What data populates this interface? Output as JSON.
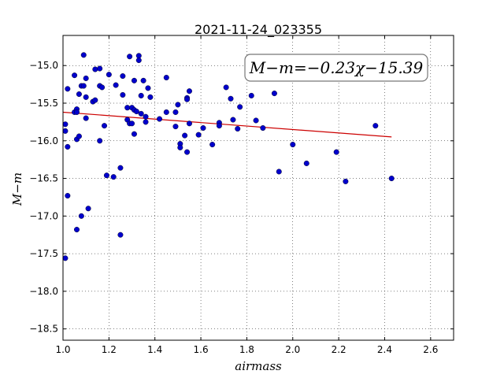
{
  "chart_data": {
    "type": "scatter",
    "title": "2021-11-24_023355",
    "xlabel": "airmass",
    "ylabel": "M−m",
    "xlim": [
      1.0,
      2.7
    ],
    "ylim": [
      -18.65,
      -14.6
    ],
    "x_ticks": [
      1.0,
      1.2,
      1.4,
      1.6,
      1.8,
      2.0,
      2.2,
      2.4,
      2.6
    ],
    "x_tick_labels": [
      "1.0",
      "1.2",
      "1.4",
      "1.6",
      "1.8",
      "2.0",
      "2.2",
      "2.4",
      "2.6"
    ],
    "y_ticks": [
      -15.0,
      -15.5,
      -16.0,
      -16.5,
      -17.0,
      -17.5,
      -18.0,
      -18.5
    ],
    "y_tick_labels": [
      "−15.0",
      "−15.5",
      "−16.0",
      "−16.5",
      "−17.0",
      "−17.5",
      "−18.0",
      "−18.5"
    ],
    "grid": true,
    "annotation": "M−m=−0.23χ−15.39",
    "annotation_position": "top-right",
    "colors": {
      "points": "#0000cc",
      "fit_line": "#cc0000"
    },
    "fit": {
      "slope": -0.23,
      "intercept": -15.39,
      "x_range": [
        1.0,
        2.43
      ]
    },
    "points": {
      "x": [
        1.01,
        1.01,
        1.02,
        1.02,
        1.02,
        1.01,
        1.05,
        1.05,
        1.06,
        1.06,
        1.06,
        1.06,
        1.07,
        1.07,
        1.08,
        1.08,
        1.09,
        1.09,
        1.1,
        1.1,
        1.1,
        1.11,
        1.13,
        1.14,
        1.14,
        1.16,
        1.16,
        1.16,
        1.17,
        1.18,
        1.19,
        1.2,
        1.22,
        1.23,
        1.25,
        1.25,
        1.26,
        1.26,
        1.28,
        1.28,
        1.29,
        1.29,
        1.3,
        1.3,
        1.31,
        1.31,
        1.31,
        1.32,
        1.33,
        1.33,
        1.34,
        1.34,
        1.35,
        1.36,
        1.36,
        1.37,
        1.38,
        1.42,
        1.45,
        1.45,
        1.49,
        1.49,
        1.5,
        1.51,
        1.51,
        1.53,
        1.54,
        1.54,
        1.54,
        1.55,
        1.55,
        1.59,
        1.61,
        1.65,
        1.68,
        1.68,
        1.71,
        1.73,
        1.74,
        1.76,
        1.77,
        1.82,
        1.84,
        1.87,
        1.92,
        1.94,
        2.0,
        2.06,
        2.19,
        2.23,
        2.36,
        2.43
      ],
      "y": [
        -15.78,
        -15.87,
        -16.08,
        -15.31,
        -16.73,
        -17.56,
        -15.13,
        -15.62,
        -15.58,
        -15.98,
        -15.62,
        -17.18,
        -15.38,
        -15.94,
        -17.0,
        -15.27,
        -14.86,
        -15.27,
        -15.17,
        -15.7,
        -15.42,
        -16.9,
        -15.48,
        -15.05,
        -15.46,
        -15.04,
        -15.27,
        -16.0,
        -15.29,
        -15.8,
        -16.46,
        -15.12,
        -16.48,
        -15.26,
        -16.36,
        -17.25,
        -15.39,
        -15.14,
        -15.56,
        -15.72,
        -14.88,
        -15.77,
        -15.77,
        -15.56,
        -15.59,
        -15.2,
        -15.91,
        -15.61,
        -14.87,
        -14.93,
        -15.4,
        -15.64,
        -15.2,
        -15.68,
        -15.75,
        -15.3,
        -15.42,
        -15.71,
        -15.62,
        -15.16,
        -15.62,
        -15.81,
        -15.52,
        -16.04,
        -16.09,
        -15.93,
        -15.43,
        -15.45,
        -16.15,
        -15.77,
        -15.34,
        -15.92,
        -15.83,
        -16.05,
        -15.76,
        -15.8,
        -15.29,
        -15.44,
        -15.72,
        -15.84,
        -15.55,
        -15.4,
        -15.73,
        -15.83,
        -15.37,
        -16.41,
        -16.05,
        -16.3,
        -16.15,
        -16.54,
        -15.8,
        -16.5
      ]
    }
  }
}
